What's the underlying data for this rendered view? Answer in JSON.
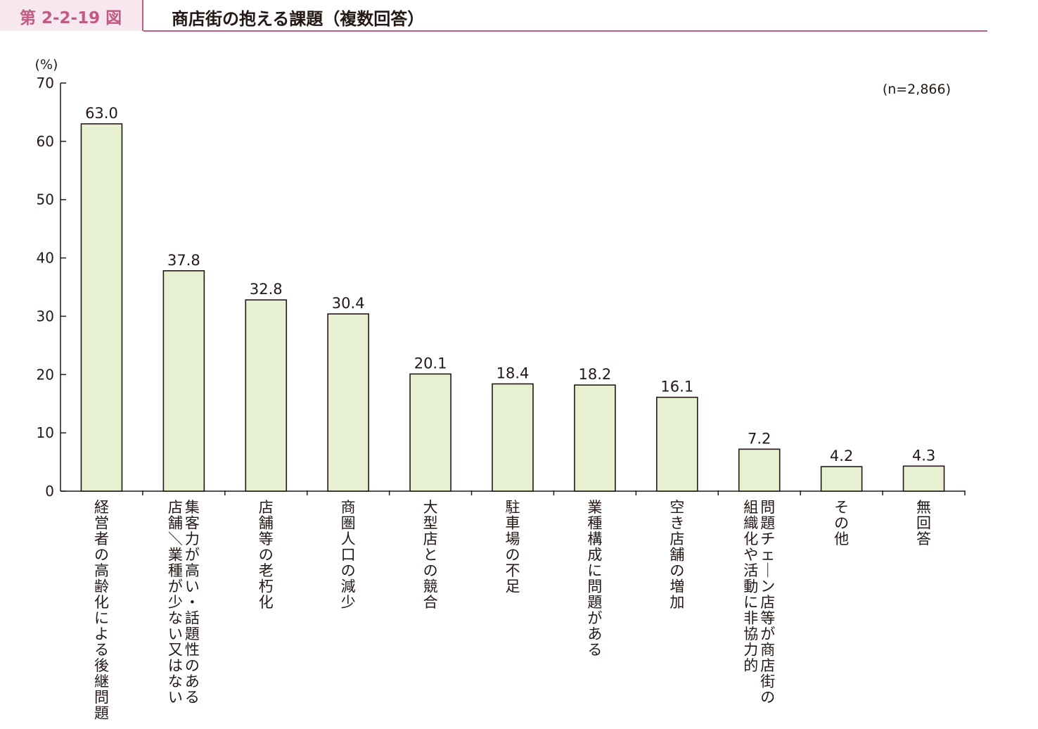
{
  "figure": {
    "number": "第 2-2-19 図",
    "title": "商店街の抱える課題（複数回答）"
  },
  "chart_data": {
    "type": "bar",
    "title": "商店街の抱える課題（複数回答）",
    "y_unit": "(%)",
    "note": "(n=2,866)",
    "ylim": [
      0,
      70
    ],
    "yticks": [
      "0",
      "10",
      "20",
      "30",
      "40",
      "50",
      "60",
      "70"
    ],
    "categories": [
      "経営者の高齢化による後継問題",
      "集客力が高い・話題性のある店舗／業種が少ない又はない",
      "店舗等の老朽化",
      "商圏人口の減少",
      "大型店との競合",
      "駐車場の不足",
      "業種構成に問題がある",
      "空き店舗の増加",
      "問題チェーン店等が商店街の組織化や活動に非協力的",
      "その他",
      "無回答"
    ],
    "category_lines": [
      [
        "経営者の高齢化による後継問題"
      ],
      [
        "集客力が高い・話題性のある",
        "店舗／業種が少ない又はない"
      ],
      [
        "店舗等の老朽化"
      ],
      [
        "商圏人口の減少"
      ],
      [
        "大型店との競合"
      ],
      [
        "駐車場の不足"
      ],
      [
        "業種構成に問題がある"
      ],
      [
        "空き店舗の増加"
      ],
      [
        "問題チェーン店等が商店街の",
        "組織化や活動に非協力的"
      ],
      [
        "その他"
      ],
      [
        "無回答"
      ]
    ],
    "values": [
      63.0,
      37.8,
      32.8,
      30.4,
      20.1,
      18.4,
      18.2,
      16.1,
      7.2,
      4.2,
      4.3
    ],
    "value_labels": [
      "63.0",
      "37.8",
      "32.8",
      "30.4",
      "20.1",
      "18.4",
      "18.2",
      "16.1",
      "7.2",
      "4.2",
      "4.3"
    ],
    "colors": {
      "bar_fill": "#e8f0d2",
      "bar_stroke": "#231815",
      "axis": "#231815",
      "accent": "#c25a86"
    },
    "grid": false,
    "legend": "none"
  }
}
